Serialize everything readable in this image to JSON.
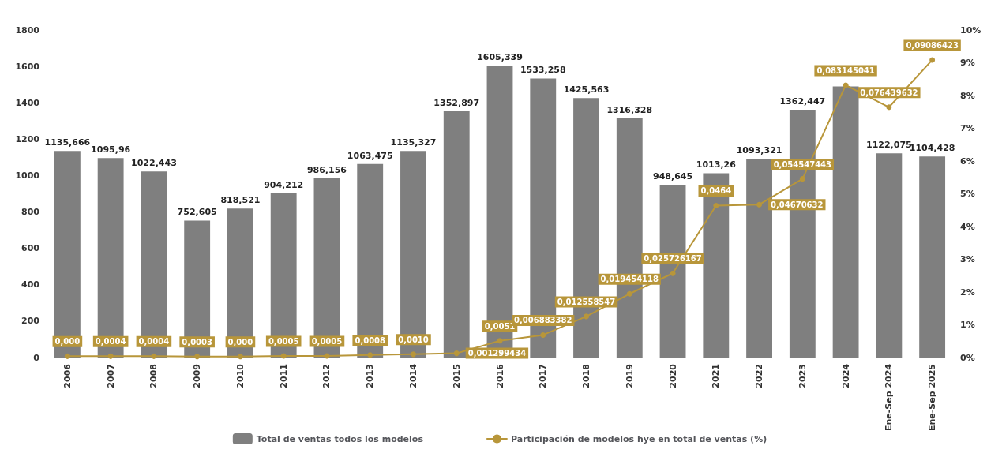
{
  "chart_data": {
    "type": "bar",
    "categories": [
      "2006",
      "2007",
      "2008",
      "2009",
      "2010",
      "2011",
      "2012",
      "2013",
      "2014",
      "2015",
      "2016",
      "2017",
      "2018",
      "2019",
      "2020",
      "2021",
      "2022",
      "2023",
      "2024",
      "Ene-Sep 2024",
      "Ene-Sep 2025"
    ],
    "series": [
      {
        "name": "Total de ventas todos los modelos",
        "color": "#7f7f7f",
        "values": [
          1135.666,
          1095.96,
          1022.443,
          752.605,
          818.521,
          904.212,
          986.156,
          1063.475,
          1135.327,
          1352.897,
          1605.339,
          1533.258,
          1425.563,
          1316.328,
          948.645,
          1013.26,
          1093.321,
          1362.447,
          1490,
          1122.075,
          1104.428
        ],
        "value_labels": [
          "1135,666",
          "1095,96",
          "1022,443",
          "752,605",
          "818,521",
          "904,212",
          "986,156",
          "1063,475",
          "1135,327",
          "1352,897",
          "1605,339",
          "1533,258",
          "1425,563",
          "1316,328",
          "948,645",
          "1013,26",
          "1093,321",
          "1362,447",
          null,
          "1122,075",
          "1104,428"
        ]
      },
      {
        "name": "Participación de modelos hye en total de ventas (%)",
        "type": "line",
        "axis": "y2",
        "color": "#b8963a",
        "values": [
          0.0004,
          0.0004,
          0.0004,
          0.0003,
          0.0003,
          0.0005,
          0.0005,
          0.0008,
          0.001,
          0.001299434,
          0.0051,
          0.006883382,
          0.012558547,
          0.019454118,
          0.025726167,
          0.0464,
          0.04670632,
          0.054547443,
          0.083145041,
          0.076439632,
          0.09086423
        ],
        "value_labels": [
          "0,000",
          "0,0004",
          "0,0004",
          "0,0003",
          "0,000",
          "0,0005",
          "0,0005",
          "0,0008",
          "0,0010",
          "0,001299434",
          "0,0051",
          "0,006883382",
          "0,012558547",
          "0,019454118",
          "0,025726167",
          "0,0464",
          "0,04670632",
          "0,054547443",
          "0,083145041",
          "0,076439632",
          "0,09086423"
        ]
      }
    ],
    "ylim": [
      0,
      1800
    ],
    "yticks": [
      0,
      200,
      400,
      600,
      800,
      1000,
      1200,
      1400,
      1600,
      1800
    ],
    "y2lim": [
      0,
      0.1
    ],
    "y2ticks": [
      {
        "value": 0,
        "label": "0%"
      },
      {
        "value": 0.01,
        "label": "1%"
      },
      {
        "value": 0.02,
        "label": "2%"
      },
      {
        "value": 0.03,
        "label": "3%"
      },
      {
        "value": 0.04,
        "label": "4%"
      },
      {
        "value": 0.05,
        "label": "5%"
      },
      {
        "value": 0.06,
        "label": "6%"
      },
      {
        "value": 0.07,
        "label": "7%"
      },
      {
        "value": 0.08,
        "label": "8%"
      },
      {
        "value": 0.09,
        "label": "9%"
      },
      {
        "value": 0.1,
        "label": "10%"
      }
    ],
    "grid": false,
    "legend": "bottom",
    "marker": "circle",
    "line_style": "solid"
  }
}
